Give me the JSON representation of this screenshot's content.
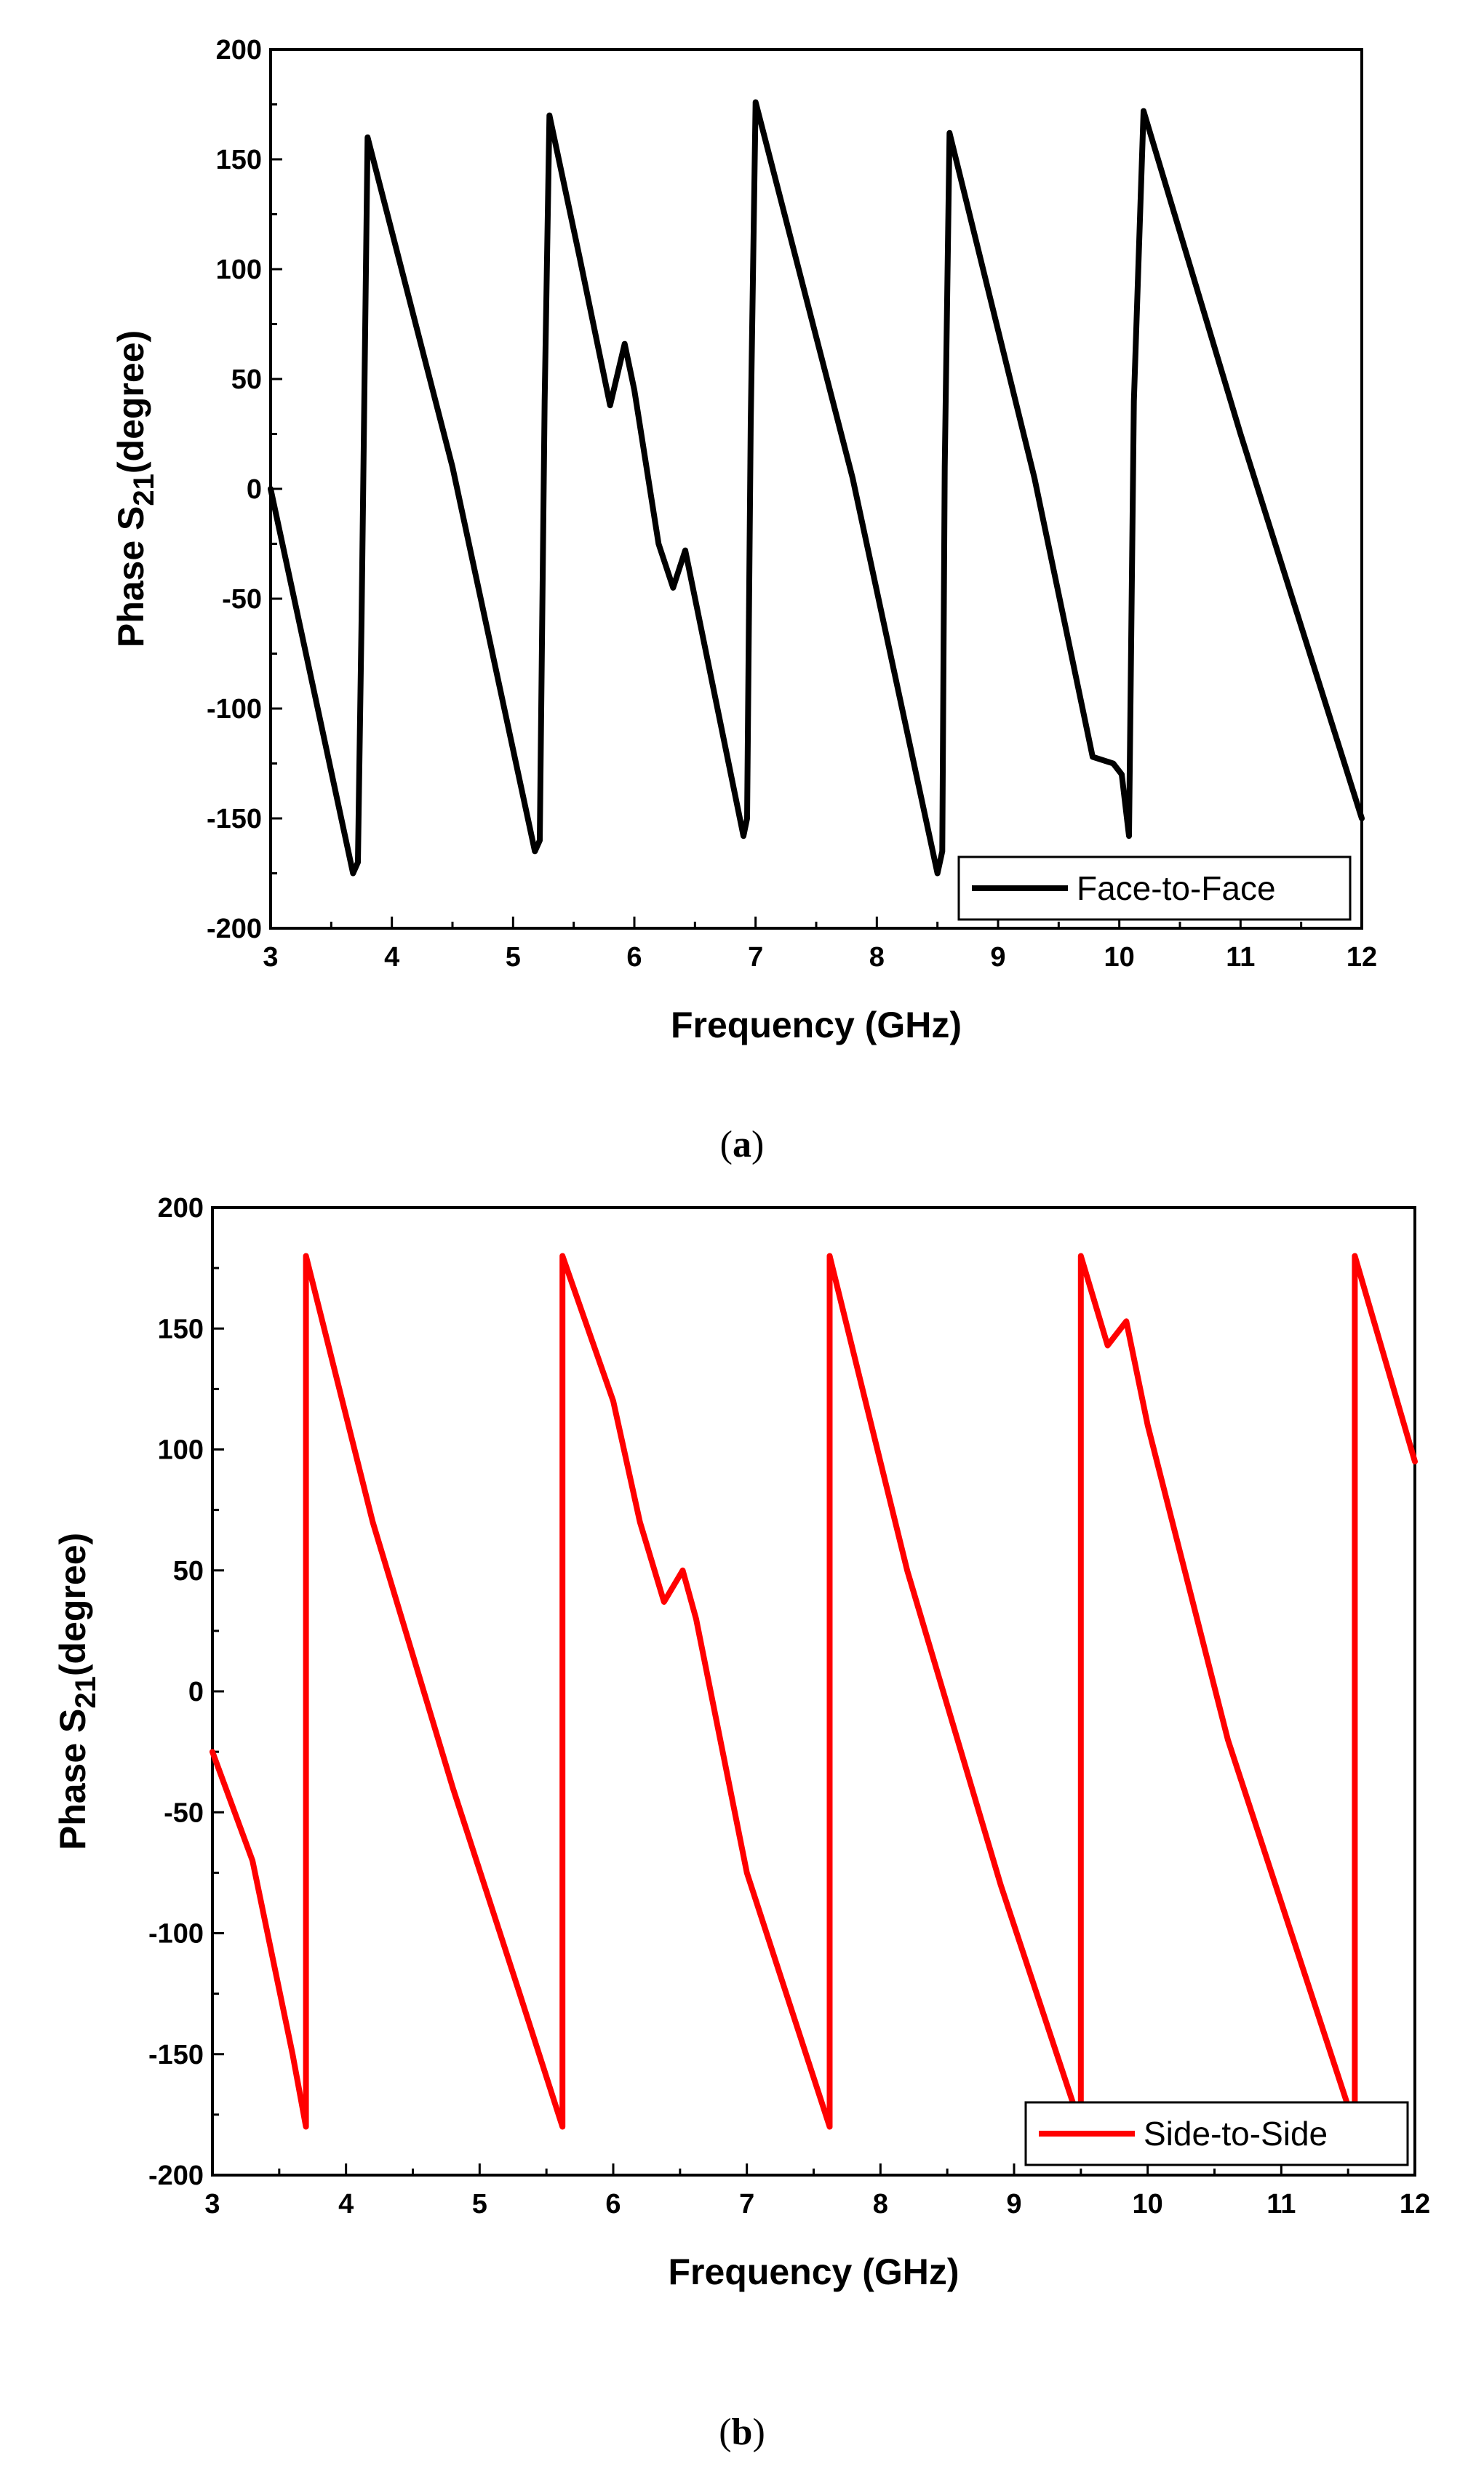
{
  "chart_data": [
    {
      "type": "line",
      "panel_label": "a",
      "xlabel": "Frequency (GHz)",
      "ylabel": "Phase S21(degree)",
      "xlim": [
        3,
        12
      ],
      "ylim": [
        -200,
        200
      ],
      "xticks": [
        3,
        4,
        5,
        6,
        7,
        8,
        9,
        10,
        11,
        12
      ],
      "yticks": [
        -200,
        -150,
        -100,
        -50,
        0,
        50,
        100,
        150,
        200
      ],
      "grid": false,
      "legend_position": "bottom-right",
      "series": [
        {
          "name": "Face-to-Face",
          "color": "#000000",
          "x": [
            3.0,
            3.35,
            3.68,
            3.72,
            3.75,
            3.8,
            4.5,
            5.18,
            5.22,
            5.26,
            5.3,
            5.55,
            5.8,
            5.92,
            6.0,
            6.2,
            6.32,
            6.42,
            6.9,
            6.93,
            6.96,
            7.0,
            7.8,
            8.5,
            8.54,
            8.56,
            8.6,
            9.3,
            9.78,
            9.95,
            10.02,
            10.08,
            10.12,
            10.2,
            11.0,
            12.0
          ],
          "values": [
            0,
            -90,
            -175,
            -170,
            -60,
            160,
            10,
            -165,
            -160,
            40,
            170,
            105,
            38,
            66,
            45,
            -25,
            -45,
            -28,
            -158,
            -150,
            30,
            176,
            5,
            -175,
            -165,
            10,
            162,
            5,
            -122,
            -125,
            -130,
            -158,
            40,
            172,
            25,
            -150
          ]
        }
      ]
    },
    {
      "type": "line",
      "panel_label": "b",
      "xlabel": "Frequency (GHz)",
      "ylabel": "Phase S21(degree)",
      "xlim": [
        3,
        12
      ],
      "ylim": [
        -200,
        200
      ],
      "xticks": [
        3,
        4,
        5,
        6,
        7,
        8,
        9,
        10,
        11,
        12
      ],
      "yticks": [
        -200,
        -150,
        -100,
        -50,
        0,
        50,
        100,
        150,
        200
      ],
      "grid": false,
      "legend_position": "bottom-right",
      "series": [
        {
          "name": "Side-to-Side",
          "color": "#ff0000",
          "x": [
            3.0,
            3.3,
            3.6,
            3.7,
            3.7,
            4.2,
            4.8,
            5.3,
            5.62,
            5.62,
            6.0,
            6.2,
            6.38,
            6.52,
            6.62,
            7.0,
            7.62,
            7.62,
            8.2,
            8.9,
            9.5,
            9.5,
            9.7,
            9.84,
            10.0,
            10.6,
            11.55,
            11.55,
            12.0
          ],
          "values": [
            -25,
            -70,
            -150,
            -180,
            180,
            70,
            -40,
            -125,
            -180,
            180,
            120,
            70,
            37,
            50,
            30,
            -75,
            -180,
            180,
            50,
            -80,
            -180,
            180,
            143,
            153,
            110,
            -20,
            -180,
            180,
            95
          ]
        }
      ]
    }
  ],
  "captions": [
    "(a)",
    "(b)"
  ],
  "panel_letters": [
    "a",
    "b"
  ]
}
